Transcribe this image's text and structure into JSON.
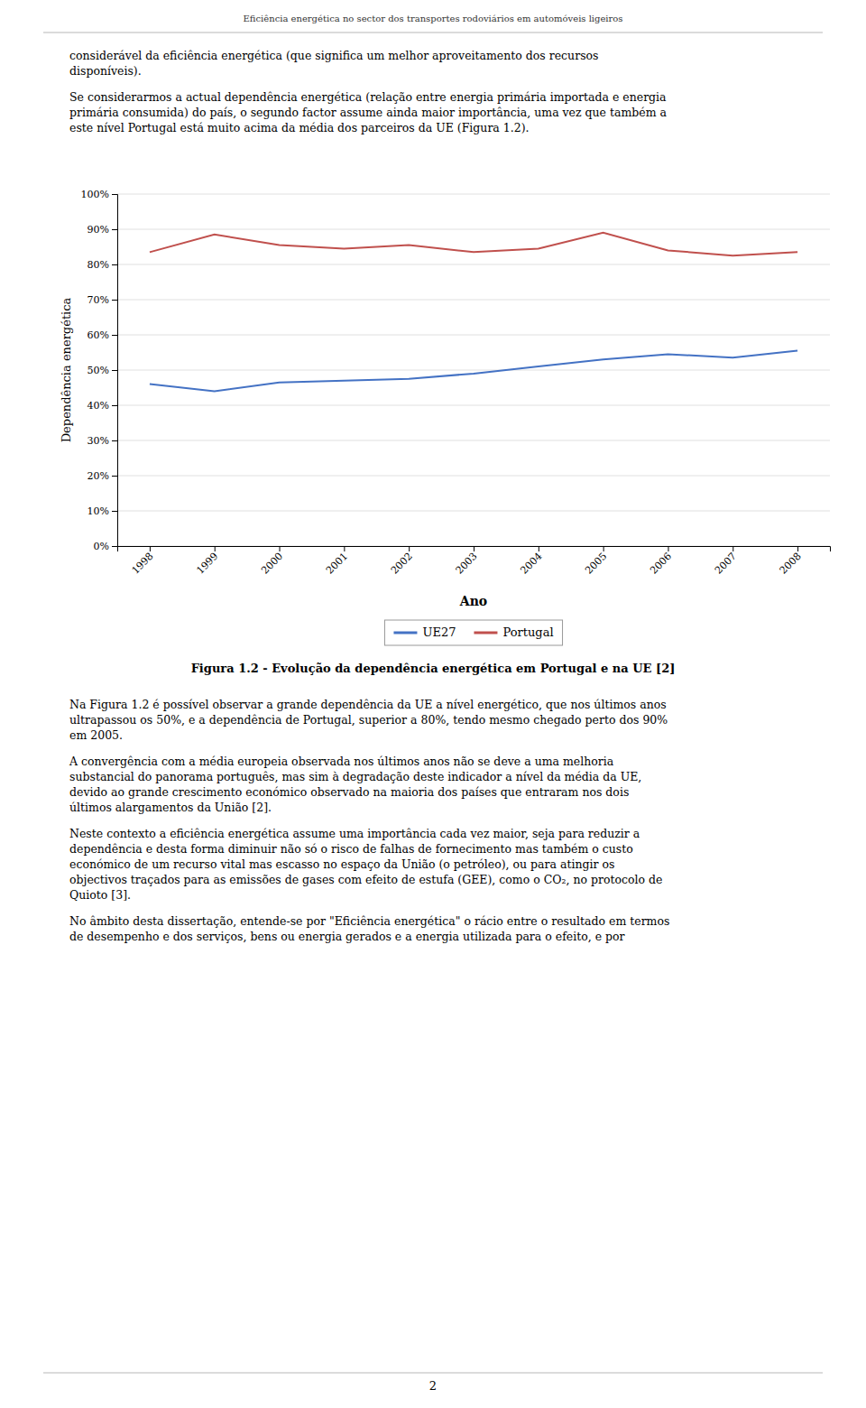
{
  "header": "Eficiência energética no sector dos transportes rodoviários em automóveis ligeiros",
  "paragraphs_before": [
    [
      "considerável da eficiência energética (que significa um melhor aproveitamento dos recursos",
      "disponíveis)."
    ],
    [
      "Se considerarmos a actual dependência energética (relação entre energia primária importada e energia",
      "primária consumida) do país, o segundo factor assume ainda maior importância, uma vez que também a",
      "este nível Portugal está muito acima da média dos parceiros da UE (Figura 1.2)."
    ]
  ],
  "chart_data": {
    "type": "line",
    "title": "Figura 1.2 - Evolução da dependência energética em Portugal e na UE [2]",
    "x_label": "Ano",
    "y_label": "Dependência energética",
    "x": [
      1998,
      1999,
      2000,
      2001,
      2002,
      2003,
      2004,
      2005,
      2006,
      2007,
      2008
    ],
    "series": [
      {
        "name": "UE27",
        "color": "#4472C4",
        "values": [
          0.46,
          0.44,
          0.465,
          0.47,
          0.475,
          0.49,
          0.51,
          0.53,
          0.545,
          0.535,
          0.555
        ]
      },
      {
        "name": "Portugal",
        "color": "#C0504D",
        "values": [
          0.835,
          0.885,
          0.855,
          0.845,
          0.855,
          0.835,
          0.845,
          0.89,
          0.84,
          0.825,
          0.835
        ]
      }
    ],
    "xlim": [
      1997.5,
      2008.5
    ],
    "xticks": [
      1998,
      1999,
      2000,
      2001,
      2002,
      2003,
      2004,
      2005,
      2006,
      2007,
      2008
    ],
    "ylim": [
      0,
      1.0
    ],
    "yticks": [
      {
        "value": 0.0,
        "label": "0%"
      },
      {
        "value": 0.1,
        "label": "10%"
      },
      {
        "value": 0.2,
        "label": "20%"
      },
      {
        "value": 0.3,
        "label": "30%"
      },
      {
        "value": 0.4,
        "label": "40%"
      },
      {
        "value": 0.5,
        "label": "50%"
      },
      {
        "value": 0.6,
        "label": "60%"
      },
      {
        "value": 0.7,
        "label": "70%"
      },
      {
        "value": 0.8,
        "label": "80%"
      },
      {
        "value": 0.9,
        "label": "90%"
      },
      {
        "value": 1.0,
        "label": "100%"
      }
    ],
    "grid": true,
    "legend": "bottom"
  },
  "paragraphs_after": [
    [
      "Na Figura 1.2 é possível observar a grande dependência da UE a nível energético, que nos últimos anos",
      "ultrapassou os 50%, e a dependência de Portugal, superior a 80%, tendo mesmo chegado perto dos 90%",
      "em 2005."
    ],
    [
      "A convergência com a média europeia observada nos últimos anos não se deve a uma melhoria",
      "substancial do panorama português, mas sim à degradação deste indicador a nível da média da UE,",
      "devido ao grande crescimento económico observado na maioria dos países que entraram nos dois",
      "últimos alargamentos da União [2]."
    ],
    [
      "Neste contexto a eficiência energética assume uma importância cada vez maior, seja para reduzir a",
      "dependência e desta forma diminuir não só o risco de falhas de fornecimento mas também o custo",
      "económico de um recurso vital mas escasso no espaço da União (o petróleo), ou para atingir os",
      "objectivos traçados para as emissões de gases com efeito de estufa (GEE), como o CO₂, no protocolo de",
      "Quioto [3]."
    ],
    [
      "No âmbito desta dissertação, entende-se por \"Eficiência energética\" o rácio entre o resultado em termos",
      "de desempenho e dos serviços, bens ou energia gerados e a energia utilizada para o efeito, e por"
    ]
  ],
  "page_number": "2"
}
